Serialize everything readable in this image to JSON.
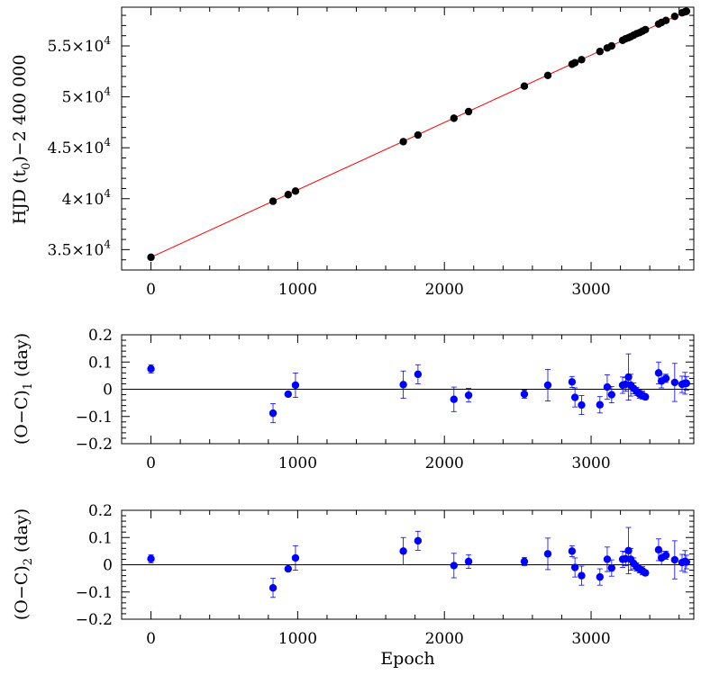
{
  "chart_data": [
    {
      "type": "scatter",
      "ylabel_main": "HJD (t",
      "ylabel_sub": "0",
      "ylabel_tail": ")−2 400 000",
      "xlim": [
        -200,
        3700
      ],
      "ylim": [
        33000,
        58800
      ],
      "xticks": [
        0,
        1000,
        2000,
        3000
      ],
      "xtick_labels": [
        "0",
        "1000",
        "2000",
        "3000"
      ],
      "yticks": [
        35000,
        40000,
        45000,
        50000,
        55000
      ],
      "ytick_labels": [
        {
          "mant": "3.5×10",
          "exp": "4"
        },
        {
          "mant": "4×10",
          "exp": "4"
        },
        {
          "mant": "4.5×10",
          "exp": "4"
        },
        {
          "mant": "5×10",
          "exp": "4"
        },
        {
          "mant": "5.5×10",
          "exp": "4"
        }
      ],
      "fit_line": {
        "x": [
          0,
          3650
        ],
        "y": [
          34250,
          58400
        ],
        "color": "#ff0000"
      },
      "x": [
        0,
        832,
        935,
        985,
        1720,
        1820,
        2065,
        2165,
        2545,
        2705,
        2870,
        2890,
        2935,
        3060,
        3110,
        3140,
        3215,
        3235,
        3255,
        3270,
        3290,
        3310,
        3330,
        3350,
        3370,
        3460,
        3480,
        3510,
        3570,
        3620,
        3640,
        3650
      ],
      "y": [
        34250,
        39750,
        40400,
        40750,
        45600,
        46250,
        47900,
        48550,
        51050,
        52100,
        53200,
        53350,
        53650,
        54450,
        54800,
        55000,
        55550,
        55700,
        55800,
        55900,
        56050,
        56200,
        56300,
        56450,
        56600,
        57150,
        57300,
        57500,
        57900,
        58250,
        58350,
        58400
      ],
      "marker_color": "#000000"
    },
    {
      "type": "scatter",
      "ylabel_main": "(O−C)",
      "ylabel_sub": "1",
      "ylabel_tail": " (day)",
      "xlim": [
        -200,
        3700
      ],
      "ylim": [
        -0.2,
        0.2
      ],
      "xticks": [
        0,
        1000,
        2000,
        3000
      ],
      "xtick_labels": [
        "0",
        "1000",
        "2000",
        "3000"
      ],
      "yticks": [
        -0.2,
        -0.1,
        0,
        0.1,
        0.2
      ],
      "ytick_labels": [
        "−0.2",
        "−0.1",
        "0",
        "0.1",
        "0.2"
      ],
      "zero_line": 0,
      "x": [
        0,
        832,
        935,
        985,
        1720,
        1820,
        2065,
        2165,
        2545,
        2705,
        2870,
        2890,
        2935,
        3060,
        3110,
        3140,
        3215,
        3235,
        3255,
        3270,
        3290,
        3310,
        3330,
        3350,
        3370,
        3460,
        3480,
        3510,
        3570,
        3620,
        3640,
        3650
      ],
      "y": [
        0.075,
        -0.088,
        -0.018,
        0.015,
        0.017,
        0.055,
        -0.037,
        -0.022,
        -0.018,
        0.015,
        0.027,
        -0.03,
        -0.058,
        -0.057,
        0.008,
        -0.02,
        0.015,
        0.018,
        0.045,
        0.015,
        0.003,
        -0.008,
        -0.018,
        -0.022,
        -0.028,
        0.06,
        0.03,
        0.04,
        0.025,
        0.018,
        0.022,
        0.022
      ],
      "err": [
        0.015,
        0.035,
        0.008,
        0.045,
        0.05,
        0.035,
        0.045,
        0.025,
        0.015,
        0.058,
        0.02,
        0.035,
        0.035,
        0.03,
        0.045,
        0.03,
        0.03,
        0.025,
        0.085,
        0.04,
        0.02,
        0.015,
        0.015,
        0.015,
        0.01,
        0.04,
        0.025,
        0.015,
        0.07,
        0.03,
        0.04,
        0.025
      ],
      "marker_color": "#0000ff"
    },
    {
      "type": "scatter",
      "ylabel_main": "(O−C)",
      "ylabel_sub": "2",
      "ylabel_tail": " (day)",
      "xlabel": "Epoch",
      "xlim": [
        -200,
        3700
      ],
      "ylim": [
        -0.2,
        0.2
      ],
      "xticks": [
        0,
        1000,
        2000,
        3000
      ],
      "xtick_labels": [
        "0",
        "1000",
        "2000",
        "3000"
      ],
      "yticks": [
        -0.2,
        -0.1,
        0,
        0.1,
        0.2
      ],
      "ytick_labels": [
        "−0.2",
        "−0.1",
        "0",
        "0.1",
        "0.2"
      ],
      "zero_line": 0,
      "x": [
        0,
        832,
        935,
        985,
        1720,
        1820,
        2065,
        2165,
        2545,
        2705,
        2870,
        2890,
        2935,
        3060,
        3110,
        3140,
        3215,
        3235,
        3255,
        3270,
        3290,
        3310,
        3330,
        3350,
        3370,
        3460,
        3480,
        3510,
        3570,
        3620,
        3640,
        3650
      ],
      "y": [
        0.022,
        -0.085,
        -0.015,
        0.025,
        0.05,
        0.088,
        -0.003,
        0.012,
        0.012,
        0.04,
        0.05,
        -0.01,
        -0.04,
        -0.045,
        0.02,
        -0.012,
        0.02,
        0.022,
        0.052,
        0.02,
        0.005,
        -0.008,
        -0.015,
        -0.022,
        -0.03,
        0.055,
        0.025,
        0.035,
        0.018,
        0.008,
        0.012,
        0.01
      ],
      "err": [
        0.015,
        0.035,
        0.008,
        0.045,
        0.05,
        0.035,
        0.045,
        0.025,
        0.015,
        0.058,
        0.02,
        0.035,
        0.035,
        0.03,
        0.045,
        0.03,
        0.03,
        0.025,
        0.085,
        0.04,
        0.02,
        0.015,
        0.015,
        0.015,
        0.01,
        0.04,
        0.025,
        0.015,
        0.07,
        0.03,
        0.04,
        0.025
      ],
      "marker_color": "#0000ff"
    }
  ]
}
